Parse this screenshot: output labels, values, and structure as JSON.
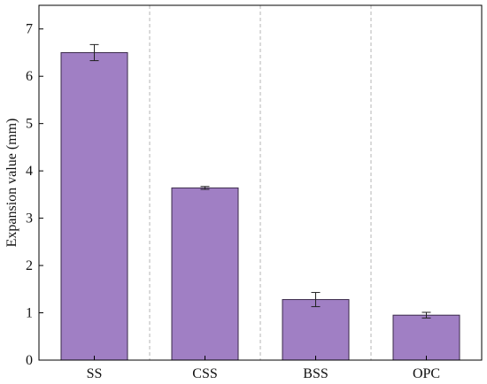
{
  "chart_data": {
    "type": "bar",
    "categories": [
      "SS",
      "CSS",
      "BSS",
      "OPC"
    ],
    "values": [
      6.5,
      3.64,
      1.28,
      0.95
    ],
    "errors": [
      0.17,
      0.03,
      0.15,
      0.06
    ],
    "ylabel": "Expansion value (mm)",
    "xlabel": "",
    "ylim": [
      0,
      7.5
    ],
    "yticks": [
      0,
      1,
      2,
      3,
      4,
      5,
      6,
      7
    ],
    "grid": false,
    "category_separators": true,
    "colors": {
      "bar_fill": "#a07fc4",
      "bar_stroke": "#3a2a4a",
      "separator": "#b5b5b5",
      "axis": "#000000"
    }
  }
}
